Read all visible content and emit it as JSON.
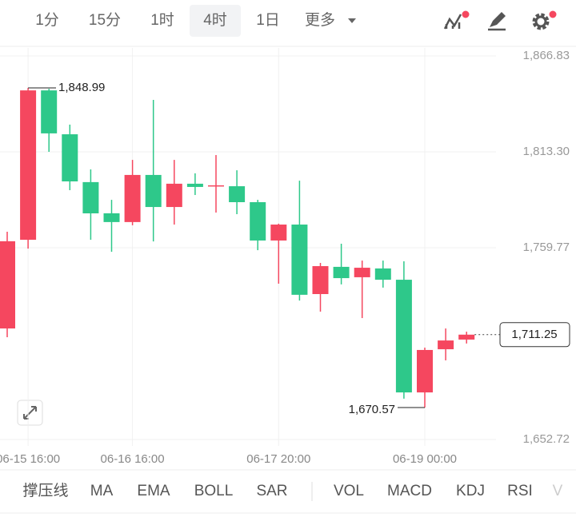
{
  "toolbar": {
    "tabs": [
      "1分",
      "15分",
      "1时",
      "4时",
      "1日",
      "更多"
    ],
    "selected": 3
  },
  "chart_data": {
    "type": "candlestick",
    "categories": [
      null,
      "06-15 16:00",
      null,
      null,
      null,
      null,
      "06-16 16:00",
      null,
      null,
      null,
      null,
      null,
      null,
      "06-17 20:00",
      null,
      null,
      null,
      null,
      null,
      null,
      "06-19 00:00",
      null,
      null
    ],
    "open": [
      1714.7,
      1764.2,
      1847.6,
      1823.1,
      1796.4,
      1779.0,
      1774.1,
      1800.4,
      1782.5,
      1795.5,
      1794.1,
      1794.1,
      1785.2,
      1763.8,
      1772.7,
      1733.9,
      1749.1,
      1743.3,
      1748.2,
      1741.9,
      1679.0,
      1703.1,
      1708.5
    ],
    "high": [
      1768.7,
      1848.99,
      1848.5,
      1828.5,
      1803.5,
      1786.5,
      1808.8,
      1842.3,
      1808.8,
      1801.3,
      1811.5,
      1803.0,
      1786.5,
      1773.2,
      1797.2,
      1751.3,
      1762.0,
      1752.6,
      1752.6,
      1752.2,
      1704.0,
      1714.7,
      1712.9
    ],
    "low": [
      1709.8,
      1759.3,
      1813.3,
      1791.9,
      1764.2,
      1757.5,
      1772.3,
      1763.3,
      1772.7,
      1789.2,
      1779.4,
      1778.5,
      1758.4,
      1739.7,
      1730.3,
      1724.1,
      1739.3,
      1720.5,
      1737.5,
      1675.5,
      1670.57,
      1696.9,
      1706.3
    ],
    "close": [
      1763.4,
      1847.6,
      1823.6,
      1796.8,
      1778.96,
      1774.1,
      1800.4,
      1782.5,
      1795.5,
      1793.7,
      1794.6,
      1785.2,
      1763.8,
      1772.7,
      1733.5,
      1749.5,
      1742.8,
      1748.6,
      1741.9,
      1679.0,
      1702.7,
      1708.0,
      1711.25
    ],
    "up_color": "#f5475f",
    "down_color": "#2ec88a",
    "ylim": [
      1652.72,
      1866.83
    ],
    "yticks": [
      {
        "value": 1866.83,
        "label": "1,866.83"
      },
      {
        "value": 1813.3,
        "label": "1,813.30"
      },
      {
        "value": 1759.77,
        "label": "1,759.77"
      },
      {
        "value": 1652.72,
        "label": "1,652.72"
      }
    ],
    "grid": true,
    "high_label": {
      "value": 1848.99,
      "label": "1,848.99"
    },
    "low_label": {
      "value": 1670.57,
      "label": "1,670.57"
    },
    "last_price": {
      "value": 1711.25,
      "label": "1,711.25"
    }
  },
  "indicators": [
    "撑压线",
    "MA",
    "EMA",
    "BOLL",
    "SAR",
    "VOL",
    "MACD",
    "KDJ",
    "RSI",
    "V"
  ]
}
